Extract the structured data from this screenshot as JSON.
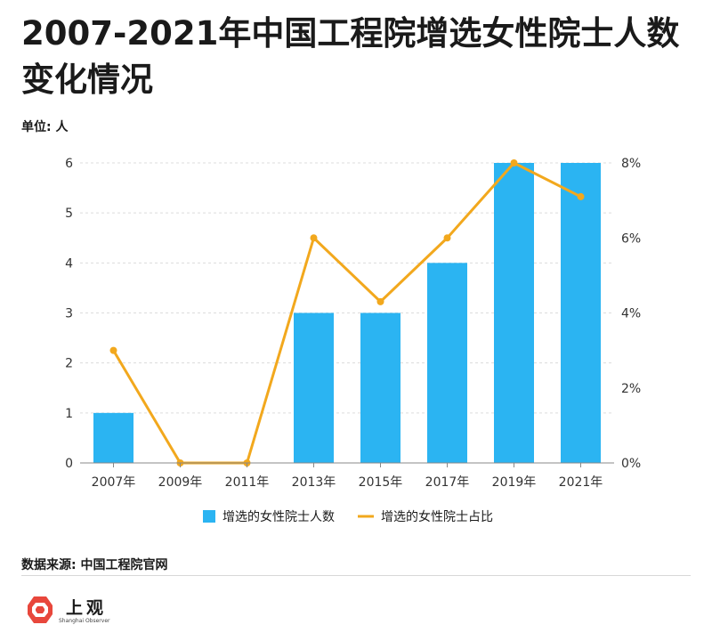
{
  "title": "2007-2021年中国工程院增选女性院士人数变化情况",
  "unit_label": "单位: 人",
  "source": "数据来源: 中国工程院官网",
  "logo": {
    "name": "上观",
    "sub": "Shanghai Observer",
    "icon": "logo-emblem-icon"
  },
  "colors": {
    "bar": "#2bb4f2",
    "line": "#f2a81d",
    "grid": "#dcdcdc",
    "axis": "#333333"
  },
  "chart_data": {
    "type": "bar",
    "categories": [
      "2007年",
      "2009年",
      "2011年",
      "2013年",
      "2015年",
      "2017年",
      "2019年",
      "2021年"
    ],
    "series": [
      {
        "name": "增选的女性院士人数",
        "type": "bar",
        "axis": "left",
        "values": [
          1,
          0,
          0,
          3,
          3,
          4,
          6,
          6
        ]
      },
      {
        "name": "增选的女性院士占比",
        "type": "line",
        "axis": "right",
        "unit": "%",
        "values": [
          3.0,
          0.0,
          0.0,
          6.0,
          4.3,
          6.0,
          8.0,
          7.1
        ]
      }
    ],
    "y_left": {
      "min": 0,
      "max": 6,
      "ticks": [
        "0",
        "1",
        "2",
        "3",
        "4",
        "5",
        "6"
      ]
    },
    "y_right": {
      "min": 0,
      "max": 8,
      "ticks": [
        "0%",
        "2%",
        "4%",
        "6%",
        "8%"
      ]
    },
    "grid": true,
    "legend_position": "bottom"
  }
}
